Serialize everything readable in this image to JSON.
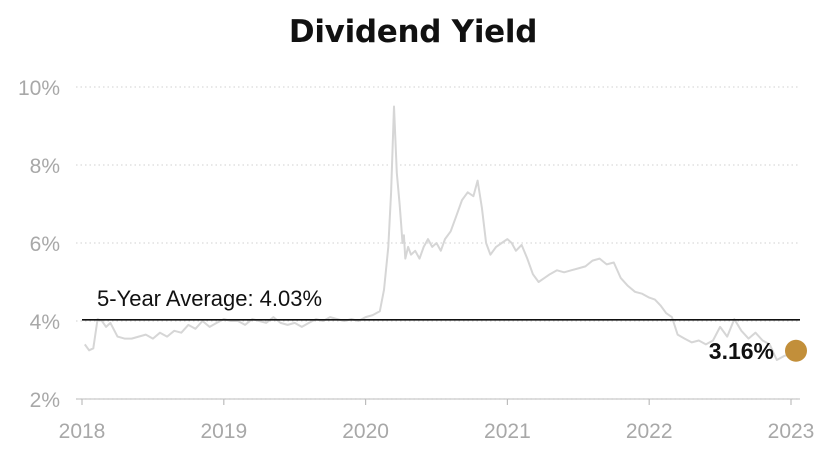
{
  "chart_data": {
    "type": "line",
    "title": "Dividend Yield",
    "xlabel": "",
    "ylabel": "",
    "x_ticks": [
      "2018",
      "2019",
      "2020",
      "2021",
      "2022",
      "2023"
    ],
    "y_ticks": [
      "2%",
      "4%",
      "6%",
      "8%",
      "10%"
    ],
    "ylim": [
      2,
      10
    ],
    "xlim": [
      2018.0,
      2023.0
    ],
    "grid": "horizontal dotted",
    "legend": "none",
    "colors": {
      "series": "#d6d6d6",
      "average_line": "#111111",
      "current_marker": "#c28f3a",
      "grid": "#d9d9d9",
      "tick_text": "#a8a8a8"
    },
    "series": [
      {
        "x": [
          2018.02,
          2018.05,
          2018.08,
          2018.11,
          2018.14,
          2018.17,
          2018.2,
          2018.25,
          2018.3,
          2018.35,
          2018.4,
          2018.45,
          2018.5,
          2018.55,
          2018.6,
          2018.65,
          2018.7,
          2018.75,
          2018.8,
          2018.85,
          2018.9,
          2018.95,
          2019.0,
          2019.05,
          2019.1,
          2019.15,
          2019.2,
          2019.25,
          2019.3,
          2019.35,
          2019.4,
          2019.45,
          2019.5,
          2019.55,
          2019.6,
          2019.65,
          2019.7,
          2019.75,
          2019.8,
          2019.85,
          2019.9,
          2019.95,
          2020.0,
          2020.05,
          2020.1,
          2020.13,
          2020.16,
          2020.18,
          2020.2,
          2020.22,
          2020.24,
          2020.25,
          2020.26,
          2020.27,
          2020.28,
          2020.3,
          2020.32,
          2020.35,
          2020.38,
          2020.41,
          2020.44,
          2020.47,
          2020.5,
          2020.53,
          2020.56,
          2020.6,
          2020.64,
          2020.68,
          2020.72,
          2020.76,
          2020.79,
          2020.82,
          2020.85,
          2020.88,
          2020.92,
          2020.96,
          2021.0,
          2021.03,
          2021.06,
          2021.1,
          2021.14,
          2021.18,
          2021.22,
          2021.26,
          2021.3,
          2021.35,
          2021.4,
          2021.45,
          2021.5,
          2021.55,
          2021.6,
          2021.65,
          2021.7,
          2021.75,
          2021.8,
          2021.85,
          2021.9,
          2021.95,
          2022.0,
          2022.04,
          2022.08,
          2022.12,
          2022.16,
          2022.2,
          2022.25,
          2022.3,
          2022.35,
          2022.4,
          2022.45,
          2022.5,
          2022.55,
          2022.6,
          2022.65,
          2022.7,
          2022.75,
          2022.8,
          2022.85,
          2022.9,
          2022.95,
          2023.0
        ],
        "y": [
          3.4,
          3.25,
          3.3,
          4.05,
          4.0,
          3.85,
          3.95,
          3.6,
          3.55,
          3.55,
          3.6,
          3.65,
          3.55,
          3.7,
          3.6,
          3.75,
          3.7,
          3.9,
          3.8,
          4.0,
          3.85,
          3.95,
          4.05,
          4.0,
          4.0,
          3.9,
          4.05,
          4.0,
          3.95,
          4.1,
          3.95,
          3.9,
          3.95,
          3.85,
          3.95,
          4.05,
          4.0,
          4.1,
          4.05,
          4.0,
          4.05,
          4.0,
          4.1,
          4.15,
          4.25,
          4.8,
          5.9,
          7.3,
          9.5,
          7.8,
          7.0,
          6.5,
          6.0,
          6.2,
          5.6,
          5.9,
          5.7,
          5.8,
          5.6,
          5.9,
          6.1,
          5.9,
          6.0,
          5.8,
          6.1,
          6.3,
          6.7,
          7.1,
          7.3,
          7.2,
          7.6,
          6.9,
          6.0,
          5.7,
          5.9,
          6.0,
          6.1,
          6.0,
          5.8,
          5.95,
          5.6,
          5.2,
          5.0,
          5.1,
          5.2,
          5.3,
          5.25,
          5.3,
          5.35,
          5.4,
          5.55,
          5.6,
          5.45,
          5.5,
          5.1,
          4.9,
          4.75,
          4.7,
          4.6,
          4.55,
          4.4,
          4.2,
          4.1,
          3.65,
          3.55,
          3.45,
          3.5,
          3.4,
          3.5,
          3.85,
          3.6,
          4.05,
          3.75,
          3.55,
          3.7,
          3.5,
          3.4,
          3.0,
          3.1,
          3.16
        ]
      }
    ],
    "annotations": {
      "average_label": "5-Year Average: 4.03%",
      "average_value": 4.03,
      "current_label": "3.16%",
      "current_value": 3.16,
      "current_x": 2023.0
    }
  }
}
